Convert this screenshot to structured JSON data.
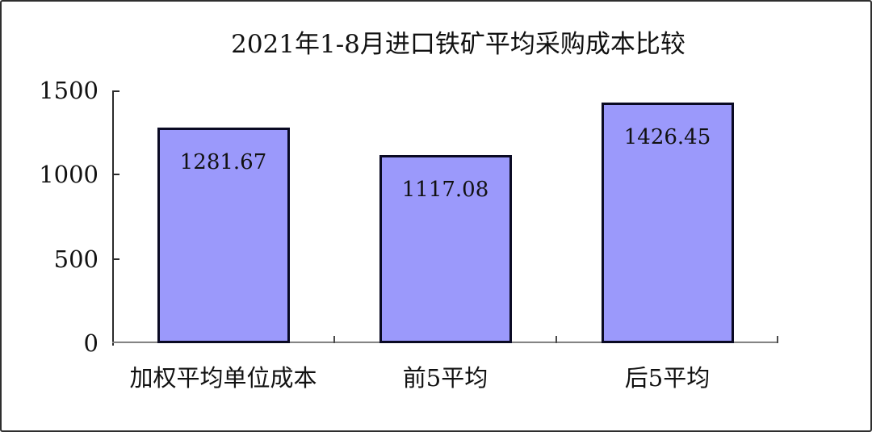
{
  "frame": {
    "background_color": "#ffffff",
    "border_color": "#2e2e2e"
  },
  "chart_data": {
    "type": "bar",
    "title": "2021年1-8月进口铁矿平均采购成本比较",
    "categories": [
      "加权平均单位成本",
      "前5平均",
      "后5平均"
    ],
    "values": [
      1281.67,
      1117.08,
      1426.45
    ],
    "value_labels": [
      "1281.67",
      "1117.08",
      "1426.45"
    ],
    "value_label_position": "inside-top",
    "xlabel": "",
    "ylabel": "",
    "ylim": [
      0,
      1500
    ],
    "yticks": [
      0,
      500,
      1000,
      1500
    ],
    "ytick_labels": [
      "0",
      "500",
      "1000",
      "1500"
    ],
    "grid": false,
    "legend": "none",
    "bar_fill_color": "#9b99fb",
    "bar_border_color": "#0a0a23",
    "axis_color": "#2b2b2b",
    "text_color": "#111111"
  }
}
